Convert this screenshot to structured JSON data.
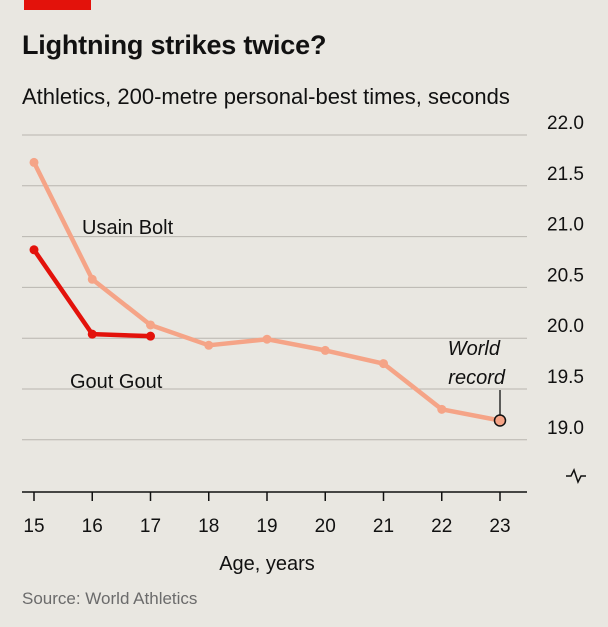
{
  "header": {
    "title": "Lightning strikes twice?",
    "subtitle": "Athletics, 200-metre personal-best times, seconds"
  },
  "footer": {
    "source": "Source: World Athletics"
  },
  "colors": {
    "bolt": "#f5a487",
    "gout": "#e3120b",
    "grid": "#b9b6af",
    "axis": "#111111",
    "accent": "#e3120b",
    "background": "#e9e7e1"
  },
  "chart_data": {
    "type": "line",
    "title": "Lightning strikes twice?",
    "subtitle": "Athletics, 200-metre personal-best times, seconds",
    "xlabel": "Age, years",
    "ylabel": "",
    "xlim": [
      15,
      23
    ],
    "ylim": [
      18.8,
      22.0
    ],
    "x_ticks": [
      "15",
      "16",
      "17",
      "18",
      "19",
      "20",
      "21",
      "22",
      "23"
    ],
    "y_ticks": [
      "22.0",
      "21.5",
      "21.0",
      "20.5",
      "20.0",
      "19.5",
      "19.0"
    ],
    "y_axis_side": "right",
    "y_axis_break": true,
    "grid": true,
    "legend": "direct labels",
    "series": [
      {
        "name": "Usain Bolt",
        "x": [
          15,
          16,
          17,
          18,
          19,
          20,
          21,
          22,
          23
        ],
        "y": [
          21.73,
          20.58,
          20.13,
          19.93,
          19.99,
          19.88,
          19.75,
          19.3,
          19.19
        ]
      },
      {
        "name": "Gout Gout",
        "x": [
          15,
          16,
          17
        ],
        "y": [
          20.87,
          20.04,
          20.02
        ]
      }
    ],
    "annotations": [
      {
        "text": "World",
        "x": 23,
        "y": 19.19
      },
      {
        "text": "record",
        "x": 23,
        "y": 19.19
      }
    ]
  }
}
